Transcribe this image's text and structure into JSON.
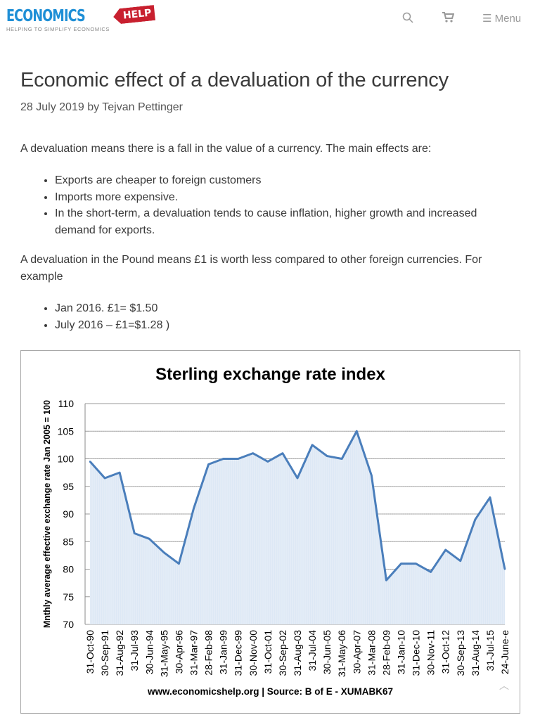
{
  "header": {
    "logo_main": "ECONOMICS",
    "logo_tag": "HELP",
    "logo_sub": "HELPING TO SIMPLIFY ECONOMICS",
    "menu_label": "Menu",
    "icons": [
      "search-icon",
      "cart-icon",
      "hamburger-icon"
    ]
  },
  "article": {
    "title": "Economic effect of a devaluation of the currency",
    "date": "28 July 2019",
    "by": "by",
    "author": "Tejvan Pettinger",
    "intro": "A devaluation means there is a fall in the value of a currency. The main effects are:",
    "effects": [
      "Exports are cheaper to foreign customers",
      "Imports more expensive.",
      "In the short-term, a devaluation tends to cause inflation, higher growth and increased demand for exports."
    ],
    "para2": "A devaluation in the Pound means £1 is worth less compared to other foreign currencies. For example",
    "examples": [
      "Jan 2016. £1= $1.50",
      "July 2016 – £1=$1.28 )"
    ]
  },
  "chart_data": {
    "type": "area",
    "title": "Sterling exchange rate index",
    "ylabel": "Mnthly average effective exchange rate  Jan 2005 = 100",
    "xlabel": "",
    "source": "www.economicshelp.org | Source: B of E - XUMABK67",
    "ylim": [
      70,
      110
    ],
    "yticks": [
      70,
      75,
      80,
      85,
      90,
      95,
      100,
      105,
      110
    ],
    "grid": true,
    "color": "#4a7ebb",
    "categories": [
      "31-Oct-90",
      "30-Sep-91",
      "31-Aug-92",
      "31-Jul-93",
      "30-Jun-94",
      "31-May-95",
      "30-Apr-96",
      "31-Mar-97",
      "28-Feb-98",
      "31-Jan-99",
      "31-Dec-99",
      "30-Nov-00",
      "31-Oct-01",
      "30-Sep-02",
      "31-Aug-03",
      "31-Jul-04",
      "30-Jun-05",
      "31-May-06",
      "30-Apr-07",
      "31-Mar-08",
      "28-Feb-09",
      "31-Jan-10",
      "31-Dec-10",
      "30-Nov-11",
      "31-Oct-12",
      "30-Sep-13",
      "31-Aug-14",
      "31-Jul-15",
      "24-June-e"
    ],
    "values": [
      99.5,
      96.5,
      97.5,
      86.5,
      85.5,
      83,
      81,
      91,
      99,
      100,
      100,
      101,
      99.5,
      101,
      96.5,
      102.5,
      100.5,
      100,
      105,
      97,
      78,
      81,
      81,
      79.5,
      83.5,
      81.5,
      89,
      93,
      80
    ]
  }
}
